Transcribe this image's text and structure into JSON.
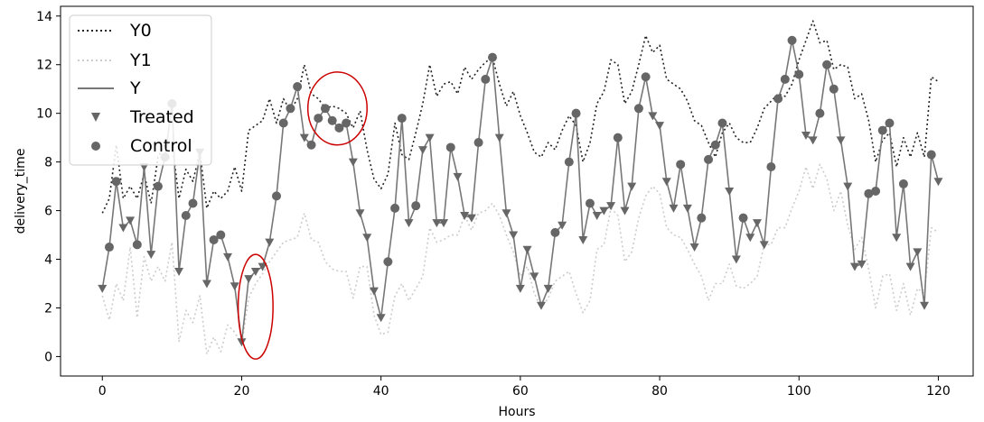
{
  "chart_data": {
    "type": "line",
    "xlabel": "Hours",
    "ylabel": "delivery_time",
    "xlim": [
      -6,
      125
    ],
    "ylim": [
      -0.8,
      14.4
    ],
    "xticks": [
      0,
      20,
      40,
      60,
      80,
      100,
      120
    ],
    "yticks": [
      0,
      2,
      4,
      6,
      8,
      10,
      12,
      14
    ],
    "xtick_labels": [
      "0",
      "20",
      "40",
      "60",
      "80",
      "100",
      "120"
    ],
    "ytick_labels": [
      "0",
      "2",
      "4",
      "6",
      "8",
      "10",
      "12",
      "14"
    ],
    "grid": false,
    "legend_position": "top-left",
    "legend": [
      "Y0",
      "Y1",
      "Y",
      "Treated",
      "Control"
    ],
    "colors": {
      "Y0": "#222222",
      "Y1": "#cccccc",
      "Y": "#777777",
      "markers": "#666666",
      "annotation": "#cc0000"
    },
    "series": [
      {
        "name": "Y0",
        "style": "dotted",
        "values": [
          5.9,
          6.5,
          8.7,
          6.5,
          7.0,
          6.5,
          7.5,
          6.3,
          8.2,
          8.7,
          8.8,
          6.5,
          7.7,
          7.2,
          8.4,
          6.1,
          6.8,
          6.5,
          6.8,
          7.8,
          6.8,
          9.3,
          9.5,
          9.7,
          10.6,
          9.6,
          10.6,
          10.1,
          10.6,
          12.0,
          10.8,
          10.6,
          10.2,
          10.3,
          10.2,
          10.0,
          9.4,
          10.1,
          8.5,
          7.3,
          6.9,
          7.5,
          9.6,
          8.3,
          8.1,
          9.2,
          10.4,
          12.0,
          10.7,
          11.2,
          11.3,
          10.8,
          11.9,
          11.4,
          11.8,
          12.1,
          12.3,
          11.2,
          10.3,
          10.9,
          9.9,
          9.2,
          8.4,
          8.2,
          8.8,
          8.5,
          9.3,
          9.9,
          9.5,
          8.0,
          8.8,
          10.4,
          10.9,
          12.2,
          12.0,
          10.4,
          10.9,
          12.0,
          13.2,
          12.5,
          12.8,
          11.4,
          11.2,
          11.0,
          10.5,
          9.7,
          9.5,
          8.8,
          8.2,
          9.2,
          9.6,
          9.0,
          8.8,
          8.8,
          9.4,
          10.2,
          10.5,
          10.8,
          10.7,
          11.2,
          12.2,
          13.0,
          13.8,
          12.9,
          13.0,
          11.8,
          12.0,
          11.9,
          10.6,
          10.8,
          9.7,
          8.0,
          8.9,
          9.2,
          7.8,
          9.0,
          8.2,
          9.2,
          8.2,
          11.5,
          11.3
        ],
        "x_start": 0
      },
      {
        "name": "Y1",
        "style": "dotted",
        "values": [
          2.5,
          1.5,
          3.0,
          2.3,
          4.5,
          1.6,
          4.1,
          3.1,
          3.7,
          3.1,
          4.7,
          0.6,
          1.9,
          1.4,
          2.5,
          0.1,
          0.8,
          0.2,
          1.3,
          1.0,
          0.5,
          2.4,
          3.0,
          3.4,
          3.9,
          4.3,
          4.7,
          4.8,
          4.9,
          5.9,
          4.8,
          4.7,
          3.9,
          3.6,
          3.5,
          3.5,
          2.4,
          3.7,
          3.7,
          1.7,
          0.9,
          1.0,
          2.5,
          3.0,
          2.3,
          2.8,
          3.3,
          5.3,
          4.7,
          4.8,
          5.0,
          5.0,
          5.8,
          5.2,
          5.9,
          6.0,
          6.3,
          5.8,
          5.0,
          4.3,
          3.3,
          3.7,
          2.6,
          2.0,
          2.4,
          3.1,
          3.3,
          3.5,
          2.6,
          1.8,
          2.3,
          4.4,
          4.6,
          6.1,
          5.8,
          3.9,
          4.3,
          5.7,
          6.6,
          7.0,
          6.7,
          5.3,
          5.0,
          4.9,
          4.4,
          3.8,
          3.3,
          2.3,
          3.0,
          3.0,
          3.8,
          2.9,
          2.8,
          3.0,
          3.3,
          4.6,
          4.6,
          5.3,
          5.3,
          6.1,
          6.8,
          7.8,
          6.9,
          7.9,
          7.3,
          6.0,
          6.8,
          5.4,
          4.4,
          4.9,
          3.6,
          2.0,
          3.3,
          3.4,
          1.9,
          3.0,
          1.7,
          2.8,
          2.6,
          5.3,
          5.1
        ],
        "x_start": 0
      },
      {
        "name": "Y",
        "style": "solid",
        "values": [
          2.8,
          4.5,
          7.2,
          5.3,
          5.6,
          4.6,
          7.8,
          4.2,
          7.0,
          8.2,
          10.4,
          3.5,
          5.8,
          6.3,
          8.4,
          3.0,
          4.8,
          5.0,
          4.1,
          2.9,
          0.6,
          3.2,
          3.5,
          3.7,
          4.7,
          6.6,
          9.6,
          10.2,
          11.1,
          9.0,
          8.7,
          9.8,
          10.2,
          9.7,
          9.4,
          9.6,
          8.0,
          5.9,
          4.9,
          2.7,
          1.6,
          3.9,
          6.1,
          9.8,
          5.5,
          6.2,
          8.5,
          9.0,
          5.5,
          5.5,
          8.6,
          7.4,
          5.8,
          5.7,
          8.8,
          11.4,
          12.3,
          9.0,
          5.9,
          5.0,
          2.8,
          4.4,
          3.3,
          2.1,
          2.8,
          5.1,
          5.4,
          8.0,
          10.0,
          4.8,
          6.3,
          5.8,
          6.0,
          6.2,
          9.0,
          6.0,
          7.0,
          10.2,
          11.5,
          9.9,
          9.5,
          7.2,
          6.1,
          7.9,
          6.1,
          4.5,
          5.7,
          8.1,
          8.7,
          9.6,
          6.8,
          4.0,
          5.7,
          4.9,
          5.5,
          4.6,
          7.8,
          10.6,
          11.4,
          13.0,
          11.6,
          9.1,
          8.9,
          10.0,
          12.0,
          11.0,
          8.9,
          7.0,
          3.7,
          3.8,
          6.7,
          6.8,
          9.3,
          9.6,
          4.9,
          7.1,
          3.7,
          4.3,
          2.1,
          8.3,
          7.2
        ],
        "treated": [
          1,
          0,
          0,
          1,
          1,
          0,
          1,
          1,
          0,
          0,
          0,
          1,
          0,
          0,
          1,
          1,
          0,
          0,
          1,
          1,
          1,
          1,
          1,
          1,
          1,
          0,
          0,
          0,
          0,
          1,
          0,
          0,
          0,
          0,
          0,
          0,
          1,
          1,
          1,
          1,
          1,
          0,
          0,
          0,
          1,
          0,
          1,
          1,
          1,
          1,
          0,
          1,
          1,
          1,
          0,
          0,
          0,
          1,
          1,
          1,
          1,
          1,
          1,
          1,
          1,
          0,
          1,
          0,
          0,
          1,
          0,
          1,
          1,
          1,
          0,
          1,
          1,
          0,
          0,
          1,
          1,
          1,
          1,
          0,
          1,
          1,
          0,
          0,
          0,
          0,
          1,
          1,
          0,
          1,
          1,
          1,
          0,
          0,
          0,
          0,
          0,
          1,
          1,
          0,
          0,
          0,
          1,
          1,
          1,
          1,
          0,
          0,
          0,
          0,
          1,
          0,
          1,
          1,
          1,
          0,
          1
        ],
        "x_start": 0
      }
    ],
    "annotations": [
      {
        "shape": "ellipse",
        "description": "",
        "x_range": [
          19.5,
          24.5
        ],
        "y_range": [
          -0.1,
          4.2
        ]
      },
      {
        "shape": "ellipse",
        "description": "",
        "x_range": [
          29.5,
          38
        ],
        "y_range": [
          8.7,
          11.7
        ]
      }
    ]
  }
}
